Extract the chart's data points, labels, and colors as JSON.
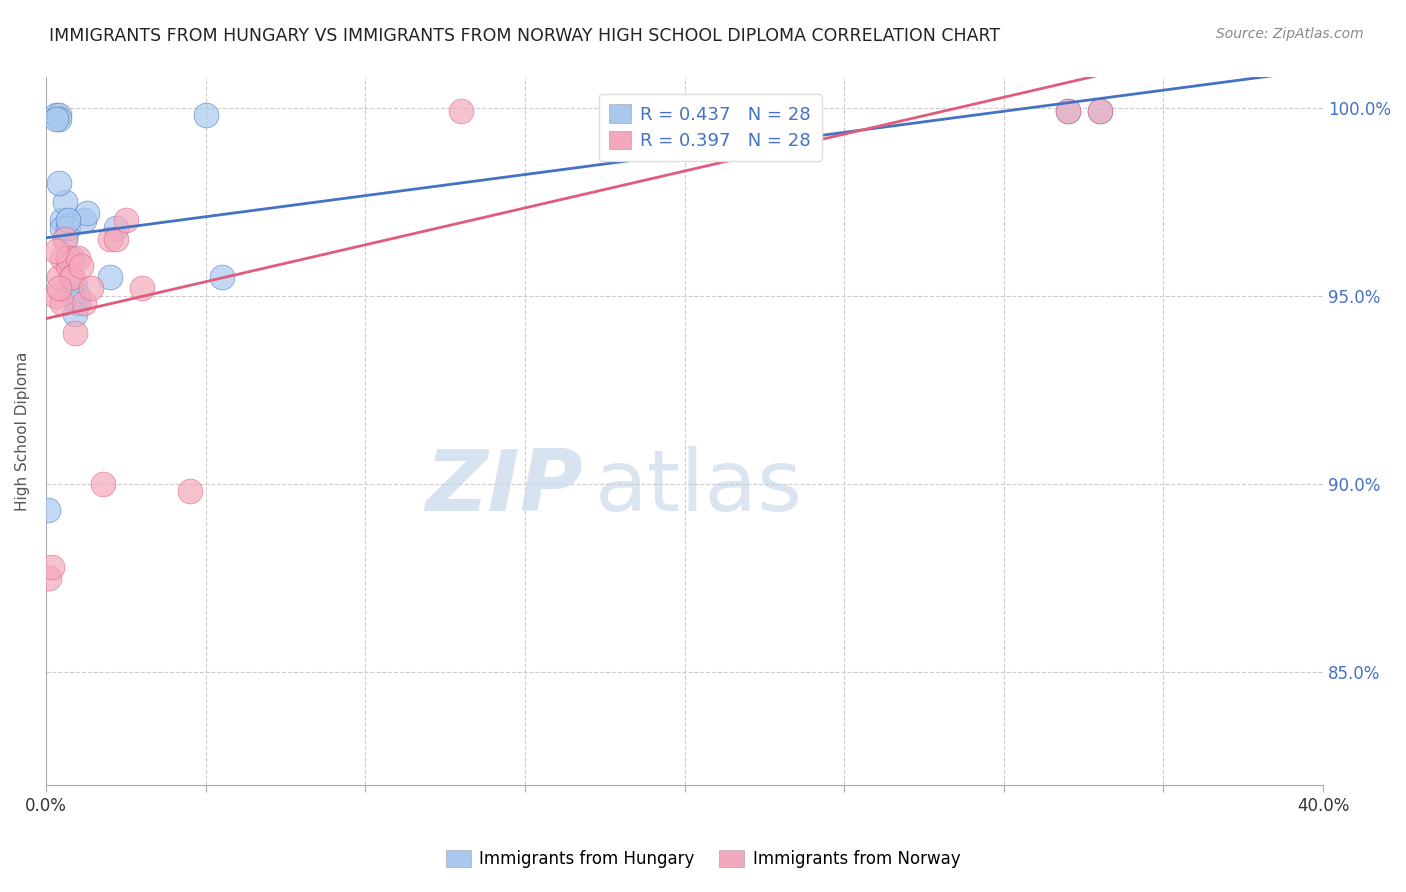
{
  "title": "IMMIGRANTS FROM HUNGARY VS IMMIGRANTS FROM NORWAY HIGH SCHOOL DIPLOMA CORRELATION CHART",
  "source": "Source: ZipAtlas.com",
  "ylabel": "High School Diploma",
  "ylabel_right_ticks": [
    "100.0%",
    "95.0%",
    "90.0%",
    "85.0%"
  ],
  "ylabel_right_values": [
    1.0,
    0.95,
    0.9,
    0.85
  ],
  "R_hungary": 0.437,
  "N_hungary": 28,
  "R_norway": 0.397,
  "N_norway": 28,
  "color_hungary": "#A8C8EE",
  "color_norway": "#F4A8BC",
  "color_hungary_line": "#4472C4",
  "color_norway_line": "#E05C7A",
  "hungary_x": [
    0.0005,
    0.003,
    0.004,
    0.004,
    0.005,
    0.005,
    0.006,
    0.006,
    0.007,
    0.007,
    0.008,
    0.009,
    0.01,
    0.01,
    0.012,
    0.013,
    0.02,
    0.022,
    0.05,
    0.055,
    0.2,
    0.32,
    0.33,
    0.003,
    0.004,
    0.007,
    0.008,
    0.009
  ],
  "hungary_y": [
    0.893,
    0.998,
    0.998,
    0.997,
    0.97,
    0.968,
    0.975,
    0.965,
    0.968,
    0.96,
    0.96,
    0.953,
    0.95,
    0.948,
    0.97,
    0.972,
    0.955,
    0.968,
    0.998,
    0.955,
    0.997,
    0.999,
    0.999,
    0.997,
    0.98,
    0.97,
    0.95,
    0.945
  ],
  "norway_x": [
    0.001,
    0.002,
    0.003,
    0.004,
    0.005,
    0.005,
    0.006,
    0.007,
    0.007,
    0.008,
    0.008,
    0.009,
    0.01,
    0.011,
    0.012,
    0.014,
    0.018,
    0.02,
    0.022,
    0.025,
    0.03,
    0.045,
    0.13,
    0.2,
    0.32,
    0.33,
    0.003,
    0.004
  ],
  "norway_y": [
    0.875,
    0.878,
    0.95,
    0.955,
    0.948,
    0.96,
    0.965,
    0.958,
    0.96,
    0.955,
    0.955,
    0.94,
    0.96,
    0.958,
    0.948,
    0.952,
    0.9,
    0.965,
    0.965,
    0.97,
    0.952,
    0.898,
    0.999,
    0.998,
    0.999,
    0.999,
    0.962,
    0.952
  ],
  "xlim": [
    0.0,
    0.4
  ],
  "ylim": [
    0.82,
    1.008
  ],
  "watermark_zip": "ZIP",
  "watermark_atlas": "atlas",
  "legend_hungary_label": "Immigrants from Hungary",
  "legend_norway_label": "Immigrants from Norway",
  "legend_hungary_text": "R = 0.437   N = 28",
  "legend_norway_text": "R = 0.397   N = 28"
}
